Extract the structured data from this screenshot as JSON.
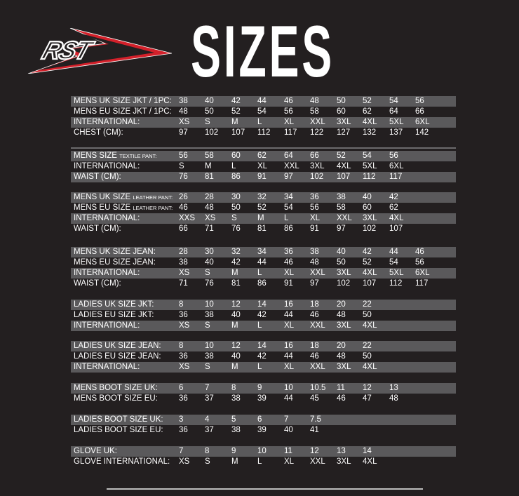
{
  "logo_text": "RST",
  "title": "SIZES",
  "colors": {
    "background": "#231f20",
    "stripe": "#5a595b",
    "logo_red": "#d3202a",
    "text": "#ffffff"
  },
  "sections": [
    {
      "rows": [
        {
          "label": "MENS UK SIZE JKT / 1PC:",
          "values": [
            "38",
            "40",
            "42",
            "44",
            "46",
            "48",
            "50",
            "52",
            "54",
            "56"
          ]
        },
        {
          "label": "MENS EU SIZE JKT / 1PC:",
          "values": [
            "48",
            "50",
            "52",
            "54",
            "56",
            "58",
            "60",
            "62",
            "64",
            "66"
          ]
        },
        {
          "label": "INTERNATIONAL:",
          "values": [
            "XS",
            "S",
            "M",
            "L",
            "XL",
            "XXL",
            "3XL",
            "4XL",
            "5XL",
            "6XL"
          ]
        },
        {
          "label": "CHEST (CM):",
          "values": [
            "97",
            "102",
            "107",
            "112",
            "117",
            "122",
            "127",
            "132",
            "137",
            "142"
          ]
        }
      ]
    },
    {
      "rows": [
        {
          "label": "MENS SIZE",
          "sub": "TEXTILE PANT:",
          "values": [
            "56",
            "58",
            "60",
            "62",
            "64",
            "66",
            "52",
            "54",
            "56"
          ]
        },
        {
          "label": "INTERNATIONAL:",
          "values": [
            "S",
            "M",
            "L",
            "XL",
            "XXL",
            "3XL",
            "4XL",
            "5XL",
            "6XL"
          ]
        },
        {
          "label": "WAIST (CM):",
          "values": [
            "76",
            "81",
            "86",
            "91",
            "97",
            "102",
            "107",
            "112",
            "117"
          ]
        }
      ]
    },
    {
      "rows": [
        {
          "label": "MENS UK SIZE",
          "sub": "LEATHER PANT:",
          "values": [
            "26",
            "28",
            "30",
            "32",
            "34",
            "36",
            "38",
            "40",
            "42"
          ]
        },
        {
          "label": "MENS EU SIZE",
          "sub": "LEATHER PANT:",
          "values": [
            "46",
            "48",
            "50",
            "52",
            "54",
            "56",
            "58",
            "60",
            "62"
          ]
        },
        {
          "label": "INTERNATIONAL:",
          "values": [
            "XXS",
            "XS",
            "S",
            "M",
            "L",
            "XL",
            "XXL",
            "3XL",
            "4XL"
          ]
        },
        {
          "label": "WAIST (CM):",
          "values": [
            "66",
            "71",
            "76",
            "81",
            "86",
            "91",
            "97",
            "102",
            "107"
          ]
        }
      ]
    },
    {
      "rows": [
        {
          "label": "MENS UK SIZE JEAN:",
          "values": [
            "28",
            "30",
            "32",
            "34",
            "36",
            "38",
            "40",
            "42",
            "44",
            "46"
          ]
        },
        {
          "label": "MENS EU SIZE JEAN:",
          "values": [
            "38",
            "40",
            "42",
            "44",
            "46",
            "48",
            "50",
            "52",
            "54",
            "56"
          ]
        },
        {
          "label": "INTERNATIONAL:",
          "values": [
            "XS",
            "S",
            "M",
            "L",
            "XL",
            "XXL",
            "3XL",
            "4XL",
            "5XL",
            "6XL"
          ]
        },
        {
          "label": "WAIST (CM):",
          "values": [
            "71",
            "76",
            "81",
            "86",
            "91",
            "97",
            "102",
            "107",
            "112",
            "117"
          ]
        }
      ]
    },
    {
      "rows": [
        {
          "label": "LADIES UK SIZE JKT:",
          "values": [
            "8",
            "10",
            "12",
            "14",
            "16",
            "18",
            "20",
            "22"
          ]
        },
        {
          "label": "LADIES EU SIZE JKT:",
          "values": [
            "36",
            "38",
            "40",
            "42",
            "44",
            "46",
            "48",
            "50"
          ]
        },
        {
          "label": "INTERNATIONAL:",
          "values": [
            "XS",
            "S",
            "M",
            "L",
            "XL",
            "XXL",
            "3XL",
            "4XL"
          ]
        }
      ]
    },
    {
      "rows": [
        {
          "label": "LADIES UK SIZE JEAN:",
          "values": [
            "8",
            "10",
            "12",
            "14",
            "16",
            "18",
            "20",
            "22"
          ]
        },
        {
          "label": "LADIES EU SIZE JEAN:",
          "values": [
            "36",
            "38",
            "40",
            "42",
            "44",
            "46",
            "48",
            "50"
          ]
        },
        {
          "label": "INTERNATIONAL:",
          "values": [
            "XS",
            "S",
            "M",
            "L",
            "XL",
            "XXL",
            "3XL",
            "4XL"
          ]
        }
      ]
    },
    {
      "rows": [
        {
          "label": "MENS BOOT SIZE UK:",
          "values": [
            "6",
            "7",
            "8",
            "9",
            "10",
            "10.5",
            "11",
            "12",
            "13"
          ]
        },
        {
          "label": "MENS BOOT SIZE EU:",
          "values": [
            "36",
            "37",
            "38",
            "39",
            "44",
            "45",
            "46",
            "47",
            "48"
          ]
        }
      ]
    },
    {
      "rows": [
        {
          "label": "LADIES BOOT SIZE UK:",
          "values": [
            "3",
            "4",
            "5",
            "6",
            "7",
            "7.5"
          ]
        },
        {
          "label": "LADIES BOOT SIZE EU:",
          "values": [
            "36",
            "37",
            "38",
            "39",
            "40",
            "41"
          ]
        }
      ]
    },
    {
      "rows": [
        {
          "label": "GLOVE UK:",
          "values": [
            "7",
            "8",
            "9",
            "10",
            "11",
            "12",
            "13",
            "14"
          ]
        },
        {
          "label": "GLOVE INTERNATIONAL:",
          "values": [
            "XS",
            "S",
            "M",
            "L",
            "XL",
            "XXL",
            "3XL",
            "4XL"
          ]
        }
      ]
    }
  ]
}
